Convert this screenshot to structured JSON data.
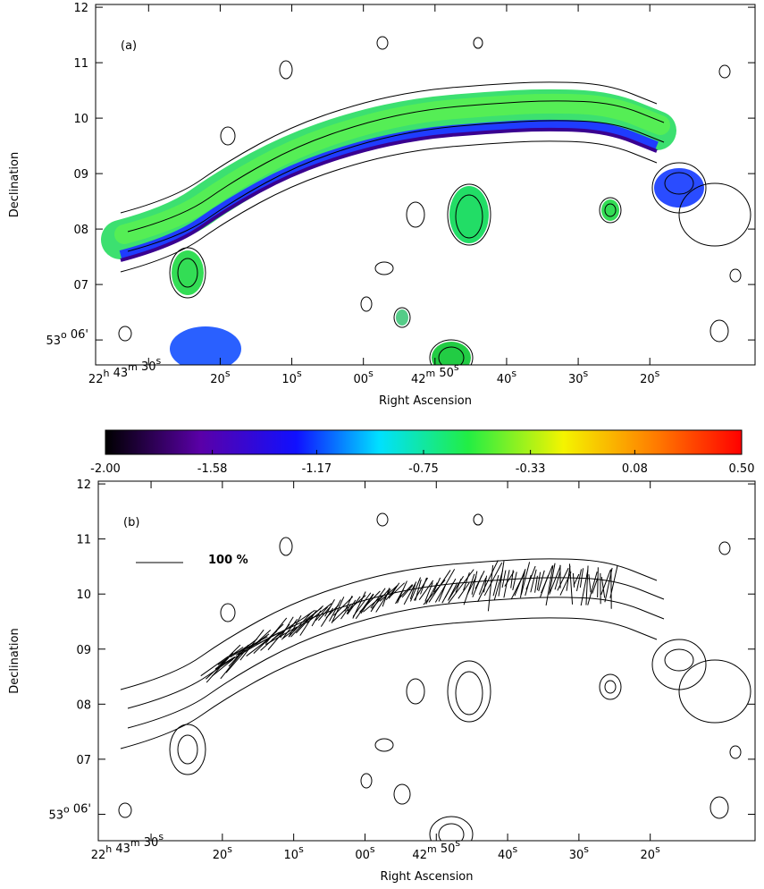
{
  "chart_data": [
    {
      "type": "map",
      "panel_label": "(a)",
      "x_label": "Right Ascension",
      "y_label": "Declination",
      "xlim": [
        97.4,
        5.3
      ],
      "ylim": [
        5.55,
        12.05
      ],
      "xticks": [
        {
          "value": 90,
          "parts": [
            {
              "text": "22",
              "sup": "h"
            },
            {
              "text": " 43",
              "sup": "m"
            },
            {
              "text": " 30",
              "sup": "s"
            }
          ]
        },
        {
          "value": 80,
          "parts": [
            {
              "text": "20",
              "sup": "s"
            }
          ]
        },
        {
          "value": 70,
          "parts": [
            {
              "text": "10",
              "sup": "s"
            }
          ]
        },
        {
          "value": 60,
          "parts": [
            {
              "text": "00",
              "sup": "s"
            }
          ]
        },
        {
          "value": 50,
          "parts": [
            {
              "text": "42",
              "sup": "m"
            },
            {
              "text": " 50",
              "sup": "s"
            }
          ]
        },
        {
          "value": 40,
          "parts": [
            {
              "text": "40",
              "sup": "s"
            }
          ]
        },
        {
          "value": 30,
          "parts": [
            {
              "text": "30",
              "sup": "s"
            }
          ]
        },
        {
          "value": 20,
          "parts": [
            {
              "text": "20",
              "sup": "s"
            }
          ]
        }
      ],
      "yticks": [
        12,
        11,
        10,
        {
          "value": 9,
          "label": "09"
        },
        {
          "value": 8,
          "label": "08"
        },
        {
          "value": 7,
          "label": "07"
        },
        {
          "value": 6,
          "parts": [
            {
              "text": "53",
              "sup": "o"
            },
            {
              "text": " 06'"
            }
          ]
        }
      ]
    },
    {
      "type": "colorbar",
      "xlim": [
        -2,
        0.5
      ],
      "xticks": [
        {
          "value": -2,
          "label": "-2.00"
        },
        {
          "value": -1.58,
          "label": "-1.58"
        },
        {
          "value": -1.17,
          "label": "-1.17"
        },
        {
          "value": -0.75,
          "label": "-0.75"
        },
        {
          "value": -0.33,
          "label": "-0.33"
        },
        {
          "value": 0.08,
          "label": "0.08"
        },
        {
          "value": 0.5,
          "label": "0.50"
        }
      ]
    },
    {
      "type": "map",
      "panel_label": "(b)",
      "x_label": "Right Ascension",
      "y_label": "Declination",
      "annotation": "100 %",
      "xlim": [
        97.4,
        5.3
      ],
      "ylim": [
        5.52,
        12.05
      ],
      "xticks": [
        {
          "value": 90,
          "parts": [
            {
              "text": "22",
              "sup": "h"
            },
            {
              "text": " 43",
              "sup": "m"
            },
            {
              "text": " 30",
              "sup": "s"
            }
          ]
        },
        {
          "value": 80,
          "parts": [
            {
              "text": "20",
              "sup": "s"
            }
          ]
        },
        {
          "value": 70,
          "parts": [
            {
              "text": "10",
              "sup": "s"
            }
          ]
        },
        {
          "value": 60,
          "parts": [
            {
              "text": "00",
              "sup": "s"
            }
          ]
        },
        {
          "value": 50,
          "parts": [
            {
              "text": "42",
              "sup": "m"
            },
            {
              "text": " 50",
              "sup": "s"
            }
          ]
        },
        {
          "value": 40,
          "parts": [
            {
              "text": "40",
              "sup": "s"
            }
          ]
        },
        {
          "value": 30,
          "parts": [
            {
              "text": "30",
              "sup": "s"
            }
          ]
        },
        {
          "value": 20,
          "parts": [
            {
              "text": "20",
              "sup": "s"
            }
          ]
        }
      ],
      "yticks": [
        12,
        11,
        10,
        {
          "value": 9,
          "label": "09"
        },
        {
          "value": 8,
          "label": "08"
        },
        {
          "value": 7,
          "label": "07"
        },
        {
          "value": 6,
          "parts": [
            {
              "text": "53",
              "sup": "o"
            },
            {
              "text": " 06'"
            }
          ]
        }
      ]
    }
  ]
}
